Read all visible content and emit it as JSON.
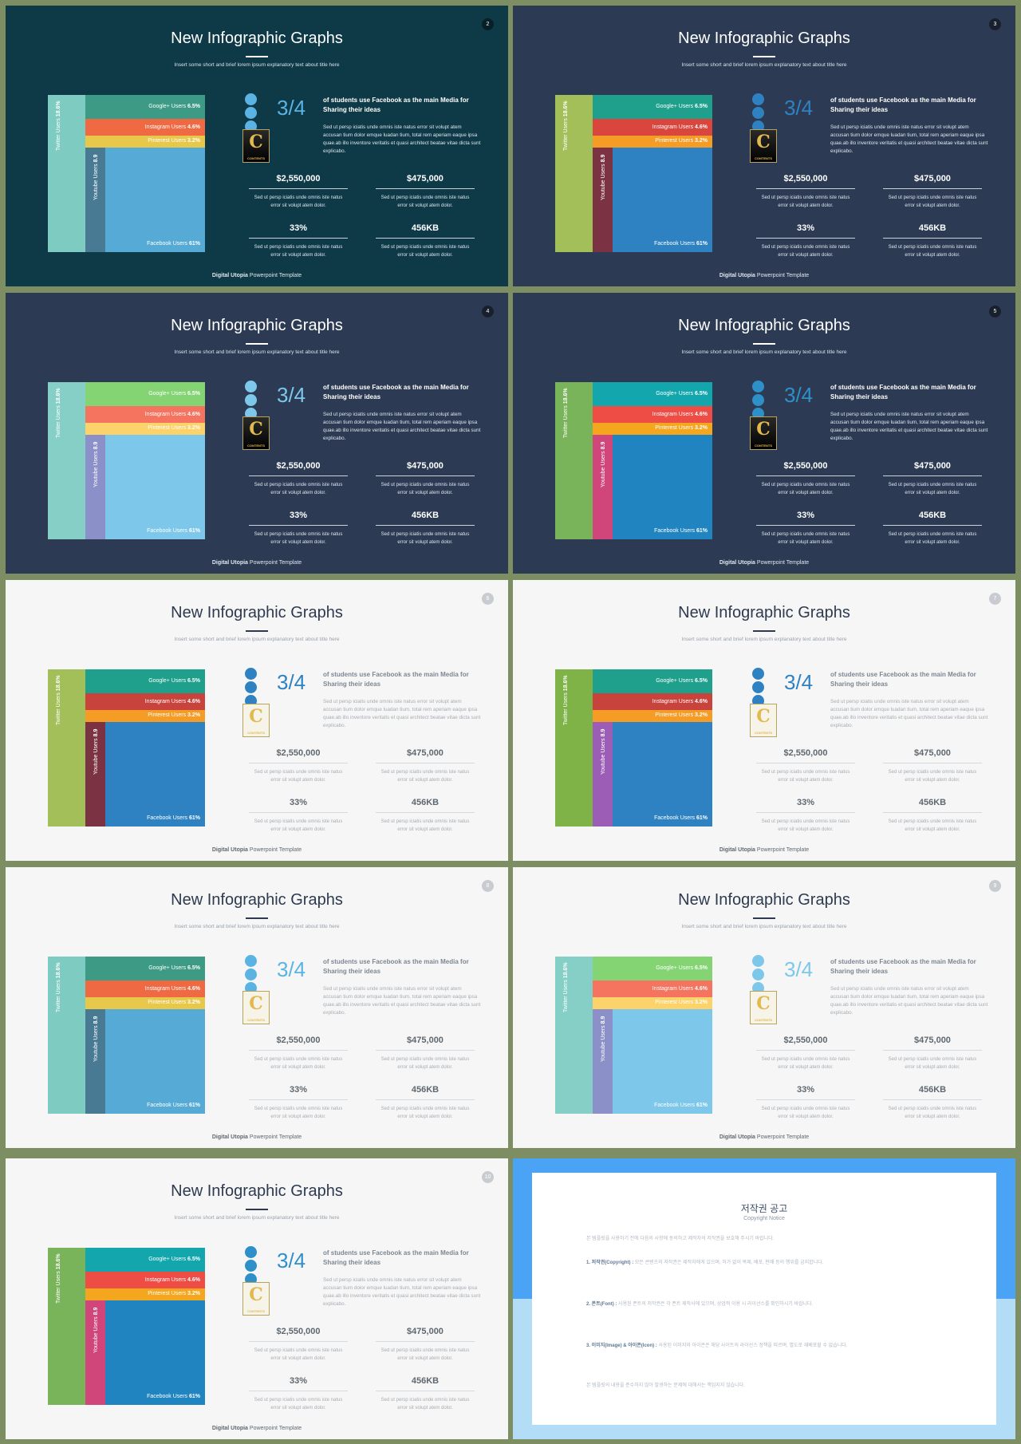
{
  "slides": [
    {
      "num": "2",
      "theme": "dark",
      "bg": "#0e3a48",
      "twitter": "#7ecbc2",
      "youtube": "#487a94",
      "google": "#3d9a84",
      "instagram": "#ef6a43",
      "pinterest": "#e8c84b",
      "facebook": "#56abd6",
      "dot": "#5ab3e3",
      "big_color": "#5ab3e3"
    },
    {
      "num": "3",
      "theme": "dark",
      "bg": "#2c3b53",
      "twitter": "#a2bf5a",
      "youtube": "#7b3243",
      "google": "#1fa08c",
      "instagram": "#d9463d",
      "pinterest": "#f49c26",
      "facebook": "#2f82c2",
      "dot": "#2f82c2",
      "big_color": "#2f82c2"
    },
    {
      "num": "4",
      "theme": "dark",
      "bg": "#2c3b53",
      "twitter": "#86cfc6",
      "youtube": "#8b90c9",
      "google": "#85d474",
      "instagram": "#f47460",
      "pinterest": "#fbd36a",
      "facebook": "#7dc7ea",
      "dot": "#7dc7ea",
      "big_color": "#7dc7ea"
    },
    {
      "num": "5",
      "theme": "dark",
      "bg": "#2c3b53",
      "twitter": "#79b35a",
      "youtube": "#d0457a",
      "google": "#13a6ad",
      "instagram": "#ee4d45",
      "pinterest": "#f5a61f",
      "facebook": "#1f84bf",
      "dot": "#2f8fc9",
      "big_color": "#2f8fc9"
    },
    {
      "num": "6",
      "theme": "light",
      "bg": "#f6f6f6",
      "twitter": "#a2bf5a",
      "youtube": "#7b3243",
      "google": "#1fa08c",
      "instagram": "#c9433d",
      "pinterest": "#f49c26",
      "facebook": "#2f82c2",
      "dot": "#2f82c2",
      "big_color": "#2f82c2"
    },
    {
      "num": "7",
      "theme": "light",
      "bg": "#f6f6f6",
      "twitter": "#7fb348",
      "youtube": "#9b5db6",
      "google": "#1fa08c",
      "instagram": "#c9433d",
      "pinterest": "#f49c26",
      "facebook": "#2f82c2",
      "dot": "#2f82c2",
      "big_color": "#2f82c2"
    },
    {
      "num": "8",
      "theme": "light",
      "bg": "#f6f6f6",
      "twitter": "#7ecbc2",
      "youtube": "#487a94",
      "google": "#3d9a84",
      "instagram": "#ef6a43",
      "pinterest": "#e8c84b",
      "facebook": "#56abd6",
      "dot": "#5ab3e3",
      "big_color": "#5ab3e3"
    },
    {
      "num": "9",
      "theme": "light",
      "bg": "#f6f6f6",
      "twitter": "#86cfc6",
      "youtube": "#8b90c9",
      "google": "#85d474",
      "instagram": "#f47460",
      "pinterest": "#fbd36a",
      "facebook": "#7dc7ea",
      "dot": "#7dc7ea",
      "big_color": "#7dc7ea"
    },
    {
      "num": "10",
      "theme": "light",
      "bg": "#f6f6f6",
      "twitter": "#79b35a",
      "youtube": "#d0457a",
      "google": "#13a6ad",
      "instagram": "#ee4d45",
      "pinterest": "#f5a61f",
      "facebook": "#1f84bf",
      "dot": "#2f8fc9",
      "big_color": "#2f8fc9"
    }
  ],
  "content": {
    "title": "New Infographic Graphs",
    "subtitle": "Insert some short and brief lorem ipsum explanatory text about title here",
    "big_number": "3/4",
    "headline": "of students use Facebook as the main Media for Sharing their ideas",
    "paragraph": "Sed ut persp iciatis unde omnis iste natus error sit volupt atem accusan tium dolor emque luadan tium, total rem aperiam eaque ipsa quae.ab illo inventore veritatis et quasi architect beatae vitae dicta sunt explicabo.",
    "stats": [
      {
        "value": "$2,550,000",
        "desc": "Sed ut persp iciatis unde omnis iste natus error sit volupt atem dolor."
      },
      {
        "value": "$475,000",
        "desc": "Sed ut persp iciatis unde omnis iste natus error sit volupt atem dolor."
      },
      {
        "value": "33%",
        "desc": "Sed ut persp iciatis unde omnis iste natus error sit volupt atem dolor."
      },
      {
        "value": "456KB",
        "desc": "Sed ut persp iciatis unde omnis iste natus error sit volupt atem dolor."
      }
    ],
    "labels": {
      "twitter_name": "Twitter Users ",
      "twitter_value": "18.6%",
      "youtube_name": "Youtube Users ",
      "youtube_value": "8.9",
      "google_name": "Google+ Users ",
      "google_value": "6.5%",
      "instagram_name": "Instagram Users ",
      "instagram_value": "4.6%",
      "pinterest_name": "Pinterest Users ",
      "pinterest_value": "3.2%",
      "facebook_name": "Facebook Users ",
      "facebook_value": "61%"
    },
    "logo_letter": "C",
    "logo_text": "CONTENTS",
    "footer_bold": "Digital Utopia",
    "footer_rest": " Powerpoint Template"
  },
  "copyright": {
    "title": "저작권 공고",
    "subtitle": "Copyright Notice",
    "intro": "본 템플릿을 사용하기 전에 다음의 사항에 동의하고 제작자의 저작권을 보호해 주시기 바랍니다.",
    "p1_head": "1. 저작권(Copyright) :",
    "p1_body": "모든 콘텐츠의 저작권은 제작자에게 있으며, 허가 없이 복제, 배포, 판매 등의 행위를 금지합니다.",
    "p2_head": "2. 폰트(Font) :",
    "p2_body": "사용된 폰트의 저작권은 각 폰트 제작사에 있으며, 상업적 이용 시 라이선스를 확인하시기 바랍니다.",
    "p3_head": "3. 이미지(Image) & 아이콘(Icon) :",
    "p3_body": "사용된 이미지와 아이콘은 해당 사이트의 라이선스 정책을 따르며, 별도로 재배포할 수 없습니다.",
    "outro": "본 템플릿의 내용을 준수하지 않아 발생하는 문제에 대해서는 책임지지 않습니다."
  }
}
